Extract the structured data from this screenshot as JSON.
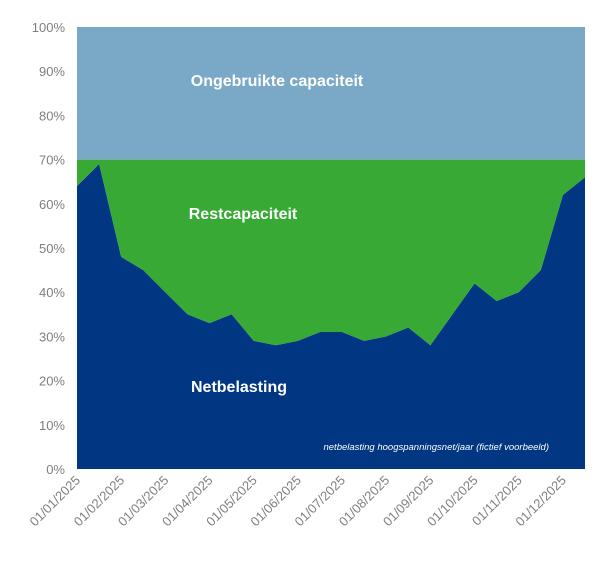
{
  "chart_data": {
    "type": "area",
    "stacked": true,
    "x": [
      "01/01/2025",
      "15/01/2025",
      "01/02/2025",
      "15/02/2025",
      "01/03/2025",
      "15/03/2025",
      "01/04/2025",
      "15/04/2025",
      "01/05/2025",
      "15/05/2025",
      "01/06/2025",
      "15/06/2025",
      "01/07/2025",
      "15/07/2025",
      "01/08/2025",
      "15/08/2025",
      "01/09/2025",
      "15/09/2025",
      "01/10/2025",
      "15/10/2025",
      "01/11/2025",
      "15/11/2025",
      "01/12/2025",
      "15/12/2025"
    ],
    "x_tick_labels": [
      "01/01/2025",
      "01/02/2025",
      "01/03/2025",
      "01/04/2025",
      "01/05/2025",
      "01/06/2025",
      "01/07/2025",
      "01/08/2025",
      "01/09/2025",
      "01/10/2025",
      "01/11/2025",
      "01/12/2025"
    ],
    "y_tick_labels": [
      "0%",
      "10%",
      "20%",
      "30%",
      "40%",
      "50%",
      "60%",
      "70%",
      "80%",
      "90%",
      "100%"
    ],
    "ylim": [
      0,
      100
    ],
    "series": [
      {
        "name": "Netbelasting",
        "color": "#003682",
        "values": [
          64,
          69,
          48,
          45,
          40,
          35,
          33,
          35,
          29,
          28,
          29,
          31,
          31,
          29,
          30,
          32,
          28,
          35,
          42,
          38,
          40,
          45,
          62,
          66
        ]
      },
      {
        "name": "Restcapaciteit",
        "color": "#38a935",
        "values": [
          6,
          1,
          22,
          25,
          30,
          35,
          37,
          35,
          41,
          42,
          41,
          39,
          39,
          41,
          40,
          38,
          42,
          35,
          28,
          32,
          30,
          25,
          8,
          4
        ]
      },
      {
        "name": "Ongebruikte capaciteit",
        "color": "#79a9c6",
        "values": [
          30,
          30,
          30,
          30,
          30,
          30,
          30,
          30,
          30,
          30,
          30,
          30,
          30,
          30,
          30,
          30,
          30,
          30,
          30,
          30,
          30,
          30,
          30,
          30
        ]
      }
    ],
    "annotation": "netbelasting hoogspanningsnet/jaar (fictief voorbeeld)",
    "grid": false,
    "legend": "none (series labels inside areas)"
  }
}
